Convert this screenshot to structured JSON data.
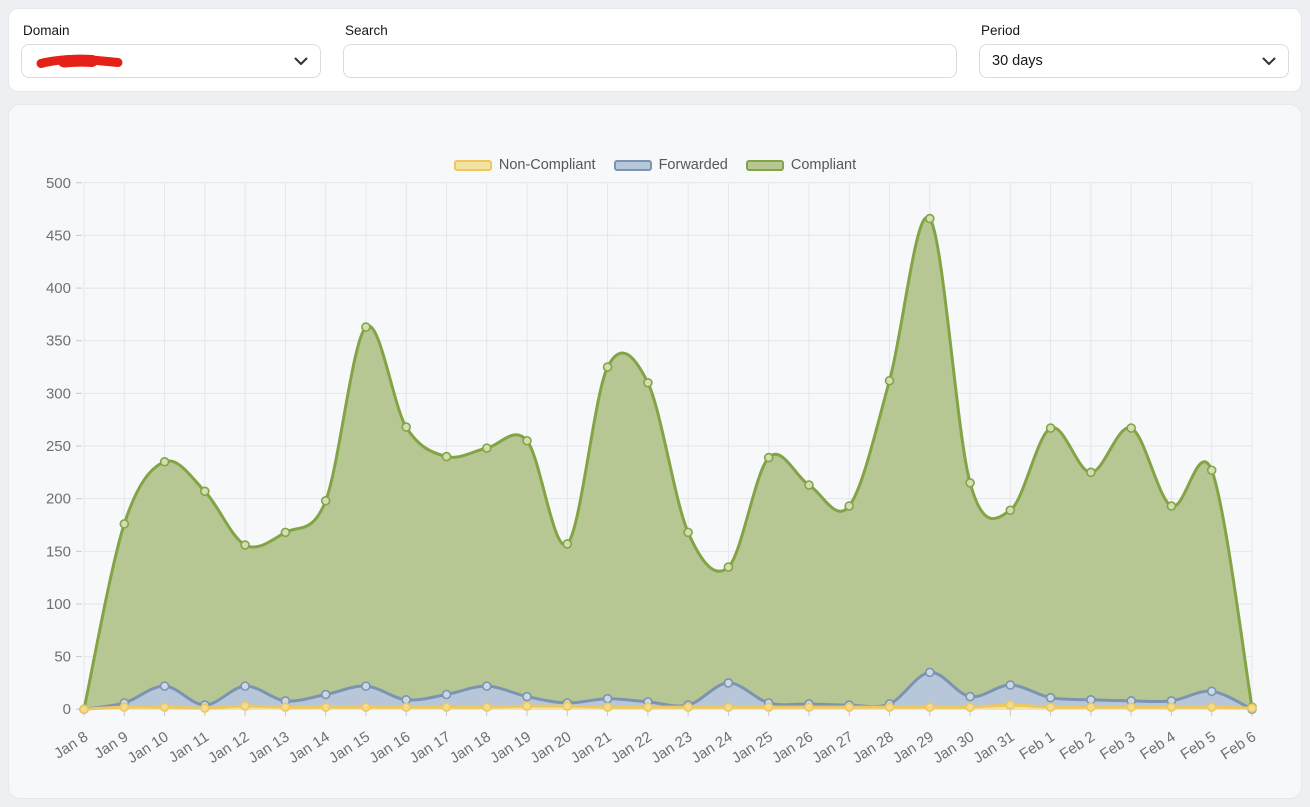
{
  "filters": {
    "domain": {
      "label": "Domain",
      "value": "",
      "redacted": true
    },
    "search": {
      "label": "Search",
      "value": "",
      "placeholder": ""
    },
    "period": {
      "label": "Period",
      "value": "30 days"
    }
  },
  "colors": {
    "page_background": "#edeff2",
    "card_background": "#ffffff",
    "chart_card_background": "#f7f8fa",
    "gridline": "#e3e6ea",
    "tick": "#c6cacf",
    "axis_text": "#6b7077",
    "legend_text": "#53575c",
    "redaction_scribble": "#e52017"
  },
  "icons": {
    "domain_chevron": "chevron-down-icon",
    "period_chevron": "chevron-down-icon"
  },
  "chart_data": {
    "type": "area",
    "title": "",
    "xlabel": "",
    "ylabel": "",
    "ylim": [
      0,
      500
    ],
    "yticks": [
      0,
      50,
      100,
      150,
      200,
      250,
      300,
      350,
      400,
      450,
      500
    ],
    "grid": true,
    "legend_position": "top-center",
    "x": [
      "Jan 8",
      "Jan 9",
      "Jan 10",
      "Jan 11",
      "Jan 12",
      "Jan 13",
      "Jan 14",
      "Jan 15",
      "Jan 16",
      "Jan 17",
      "Jan 18",
      "Jan 19",
      "Jan 20",
      "Jan 21",
      "Jan 22",
      "Jan 23",
      "Jan 24",
      "Jan 25",
      "Jan 26",
      "Jan 27",
      "Jan 28",
      "Jan 29",
      "Jan 30",
      "Jan 31",
      "Feb 1",
      "Feb 2",
      "Feb 3",
      "Feb 4",
      "Feb 5",
      "Feb 6"
    ],
    "series": [
      {
        "name": "Non-Compliant",
        "line_color": "#edc75f",
        "fill_color": "#f3e2a1",
        "marker_fill": "#f2da8e",
        "values": [
          0,
          2,
          2,
          1,
          3,
          2,
          2,
          2,
          2,
          2,
          2,
          3,
          3,
          2,
          2,
          2,
          2,
          2,
          2,
          2,
          2,
          2,
          2,
          4,
          2,
          2,
          2,
          2,
          2,
          1
        ]
      },
      {
        "name": "Forwarded",
        "line_color": "#7b94b1",
        "fill_color": "#b8c6d9",
        "marker_fill": "#cdd8e5",
        "values": [
          0,
          6,
          22,
          4,
          22,
          8,
          14,
          22,
          9,
          14,
          22,
          12,
          6,
          10,
          7,
          4,
          25,
          6,
          5,
          4,
          5,
          35,
          12,
          23,
          11,
          9,
          8,
          8,
          17,
          0
        ]
      },
      {
        "name": "Compliant",
        "line_color": "#82a445",
        "fill_color": "#b6c794",
        "marker_fill": "#d2ddb4",
        "values": [
          0,
          176,
          235,
          207,
          156,
          168,
          198,
          363,
          268,
          240,
          248,
          255,
          157,
          325,
          310,
          168,
          135,
          239,
          213,
          193,
          312,
          466,
          215,
          189,
          267,
          225,
          267,
          193,
          227,
          2
        ]
      }
    ]
  }
}
